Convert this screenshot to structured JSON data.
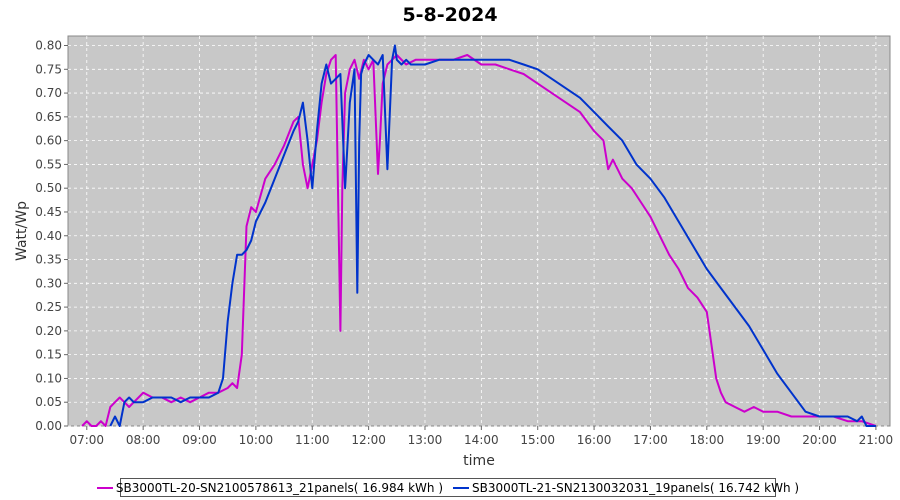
{
  "chart_data": {
    "type": "line",
    "title": "5-8-2024",
    "xlabel": "time",
    "ylabel": "Watt/Wp",
    "xlim": [
      "06:40",
      "21:15"
    ],
    "ylim": [
      0,
      0.82
    ],
    "grid": true,
    "legend_position": "bottom",
    "x_ticks": [
      "07:00",
      "08:00",
      "09:00",
      "10:00",
      "11:00",
      "12:00",
      "13:00",
      "14:00",
      "15:00",
      "16:00",
      "17:00",
      "18:00",
      "19:00",
      "20:00",
      "21:00"
    ],
    "y_ticks": [
      "0.00",
      "0.05",
      "0.10",
      "0.15",
      "0.20",
      "0.25",
      "0.30",
      "0.35",
      "0.40",
      "0.45",
      "0.50",
      "0.55",
      "0.60",
      "0.65",
      "0.70",
      "0.75",
      "0.80"
    ],
    "series": [
      {
        "name": "SB3000TL-20-SN2100578613_21panels( 16.984 kWh )",
        "color": "#cc00cc",
        "x": [
          "06:55",
          "07:00",
          "07:05",
          "07:10",
          "07:15",
          "07:20",
          "07:25",
          "07:30",
          "07:35",
          "07:40",
          "07:45",
          "07:50",
          "07:55",
          "08:00",
          "08:10",
          "08:20",
          "08:30",
          "08:40",
          "08:50",
          "09:00",
          "09:10",
          "09:20",
          "09:30",
          "09:35",
          "09:40",
          "09:45",
          "09:50",
          "09:55",
          "10:00",
          "10:10",
          "10:20",
          "10:30",
          "10:40",
          "10:45",
          "10:50",
          "10:55",
          "11:00",
          "11:05",
          "11:10",
          "11:15",
          "11:20",
          "11:25",
          "11:30",
          "11:32",
          "11:35",
          "11:40",
          "11:45",
          "11:50",
          "11:55",
          "12:00",
          "12:05",
          "12:10",
          "12:12",
          "12:15",
          "12:20",
          "12:25",
          "12:30",
          "12:40",
          "12:50",
          "13:00",
          "13:15",
          "13:30",
          "13:45",
          "14:00",
          "14:15",
          "14:30",
          "14:45",
          "15:00",
          "15:15",
          "15:30",
          "15:45",
          "16:00",
          "16:10",
          "16:15",
          "16:20",
          "16:30",
          "16:40",
          "16:50",
          "17:00",
          "17:10",
          "17:20",
          "17:30",
          "17:40",
          "17:50",
          "18:00",
          "18:10",
          "18:15",
          "18:20",
          "18:30",
          "18:40",
          "18:50",
          "19:00",
          "19:15",
          "19:30",
          "19:45",
          "20:00",
          "20:15",
          "20:30",
          "20:45",
          "21:00"
        ],
        "y": [
          0.0,
          0.01,
          0.0,
          0.0,
          0.01,
          0.0,
          0.04,
          0.05,
          0.06,
          0.05,
          0.04,
          0.05,
          0.06,
          0.07,
          0.06,
          0.06,
          0.05,
          0.06,
          0.05,
          0.06,
          0.07,
          0.07,
          0.08,
          0.09,
          0.08,
          0.15,
          0.42,
          0.46,
          0.45,
          0.52,
          0.55,
          0.59,
          0.64,
          0.65,
          0.55,
          0.5,
          0.55,
          0.6,
          0.68,
          0.74,
          0.77,
          0.78,
          0.2,
          0.5,
          0.7,
          0.75,
          0.77,
          0.73,
          0.77,
          0.75,
          0.77,
          0.53,
          0.6,
          0.72,
          0.76,
          0.77,
          0.78,
          0.76,
          0.77,
          0.77,
          0.77,
          0.77,
          0.78,
          0.76,
          0.76,
          0.75,
          0.74,
          0.72,
          0.7,
          0.68,
          0.66,
          0.62,
          0.6,
          0.54,
          0.56,
          0.52,
          0.5,
          0.47,
          0.44,
          0.4,
          0.36,
          0.33,
          0.29,
          0.27,
          0.24,
          0.1,
          0.07,
          0.05,
          0.04,
          0.03,
          0.04,
          0.03,
          0.03,
          0.02,
          0.02,
          0.02,
          0.02,
          0.01,
          0.01,
          0.0
        ]
      },
      {
        "name": "SB3000TL-21-SN2130032031_19panels( 16.742 kWh )",
        "color": "#0033cc",
        "x": [
          "07:25",
          "07:30",
          "07:35",
          "07:40",
          "07:45",
          "07:50",
          "07:55",
          "08:00",
          "08:10",
          "08:20",
          "08:30",
          "08:40",
          "08:50",
          "09:00",
          "09:10",
          "09:20",
          "09:25",
          "09:30",
          "09:35",
          "09:40",
          "09:45",
          "09:50",
          "09:55",
          "10:00",
          "10:10",
          "10:20",
          "10:30",
          "10:40",
          "10:45",
          "10:50",
          "10:55",
          "11:00",
          "11:05",
          "11:10",
          "11:15",
          "11:20",
          "11:25",
          "11:30",
          "11:35",
          "11:40",
          "11:45",
          "11:48",
          "11:50",
          "11:52",
          "11:55",
          "12:00",
          "12:05",
          "12:10",
          "12:15",
          "12:20",
          "12:25",
          "12:28",
          "12:30",
          "12:35",
          "12:40",
          "12:45",
          "12:50",
          "13:00",
          "13:15",
          "13:30",
          "13:45",
          "14:00",
          "14:15",
          "14:30",
          "14:45",
          "15:00",
          "15:15",
          "15:30",
          "15:45",
          "16:00",
          "16:15",
          "16:30",
          "16:45",
          "17:00",
          "17:15",
          "17:30",
          "17:45",
          "18:00",
          "18:15",
          "18:30",
          "18:45",
          "19:00",
          "19:15",
          "19:30",
          "19:45",
          "20:00",
          "20:15",
          "20:30",
          "20:40",
          "20:45",
          "20:50",
          "21:00"
        ],
        "y": [
          0.0,
          0.02,
          0.0,
          0.05,
          0.06,
          0.05,
          0.05,
          0.05,
          0.06,
          0.06,
          0.06,
          0.05,
          0.06,
          0.06,
          0.06,
          0.07,
          0.1,
          0.22,
          0.3,
          0.36,
          0.36,
          0.37,
          0.39,
          0.43,
          0.47,
          0.52,
          0.57,
          0.62,
          0.64,
          0.68,
          0.6,
          0.5,
          0.62,
          0.72,
          0.76,
          0.72,
          0.73,
          0.74,
          0.5,
          0.68,
          0.75,
          0.28,
          0.6,
          0.74,
          0.76,
          0.78,
          0.77,
          0.76,
          0.78,
          0.54,
          0.77,
          0.8,
          0.77,
          0.76,
          0.77,
          0.76,
          0.76,
          0.76,
          0.77,
          0.77,
          0.77,
          0.77,
          0.77,
          0.77,
          0.76,
          0.75,
          0.73,
          0.71,
          0.69,
          0.66,
          0.63,
          0.6,
          0.55,
          0.52,
          0.48,
          0.43,
          0.38,
          0.33,
          0.29,
          0.25,
          0.21,
          0.16,
          0.11,
          0.07,
          0.03,
          0.02,
          0.02,
          0.02,
          0.01,
          0.02,
          0.0,
          0.0
        ]
      }
    ]
  }
}
